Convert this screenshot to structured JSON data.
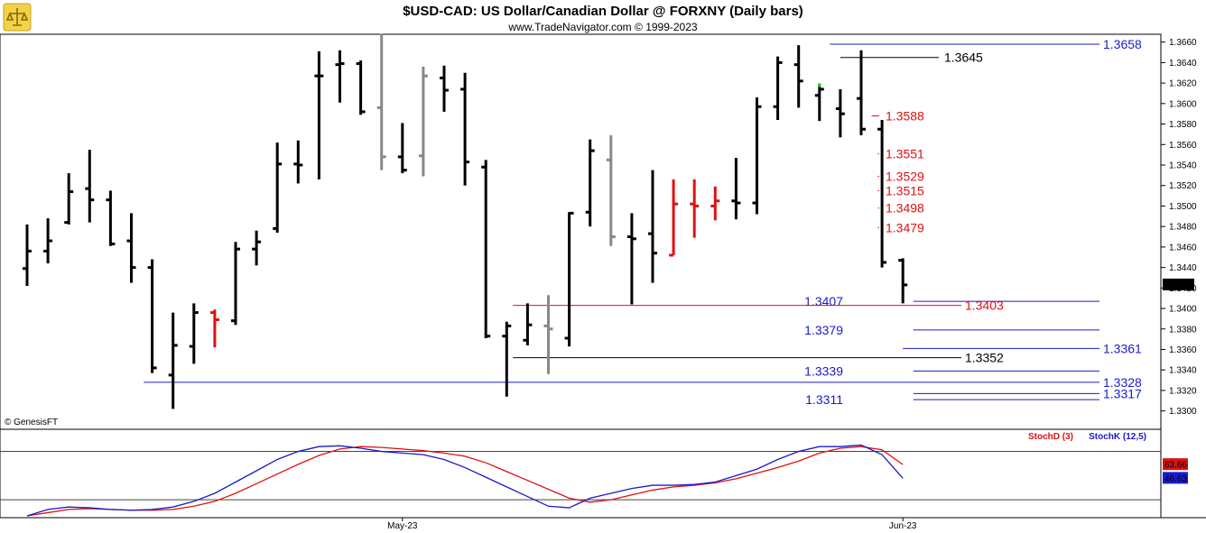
{
  "header": {
    "title": "$USD-CAD:  US Dollar/Canadian Dollar @ FORXNY  (Daily bars)",
    "subtitle": "www.TradeNavigator.com © 1999-2023",
    "watermark": "© GenesisFT"
  },
  "chart_data": [
    {
      "type": "ohlc",
      "name": "price",
      "ylim": [
        1.329,
        1.3665
      ],
      "y_ticks": [
        1.33,
        1.332,
        1.334,
        1.336,
        1.338,
        1.34,
        1.342,
        1.344,
        1.346,
        1.348,
        1.35,
        1.352,
        1.354,
        1.356,
        1.358,
        1.36,
        1.362,
        1.364,
        1.366
      ],
      "y_tick_labels": [
        "1.3300",
        "1.3320",
        "1.3340",
        "1.3360",
        "1.3380",
        "1.3400",
        "1.3420",
        "1.3440",
        "1.3460",
        "1.3480",
        "1.3500",
        "1.3520",
        "1.3540",
        "1.3560",
        "1.3580",
        "1.3600",
        "1.3620",
        "1.3640",
        "1.3660"
      ],
      "x_labels": [
        "May-23",
        "Jun-23"
      ],
      "x_label_bar_index": [
        18,
        42
      ],
      "last_price": "1.3423",
      "last_price_value": 1.3423,
      "bars": [
        {
          "o": 1.3439,
          "h": 1.3482,
          "l": 1.3422,
          "c": 1.3456,
          "color": "#000000"
        },
        {
          "o": 1.3456,
          "h": 1.3488,
          "l": 1.3444,
          "c": 1.3466,
          "color": "#000000"
        },
        {
          "o": 1.3484,
          "h": 1.3532,
          "l": 1.3482,
          "c": 1.3514,
          "color": "#000000"
        },
        {
          "o": 1.3517,
          "h": 1.3555,
          "l": 1.3484,
          "c": 1.3506,
          "color": "#000000"
        },
        {
          "o": 1.3506,
          "h": 1.3515,
          "l": 1.3461,
          "c": 1.3463,
          "color": "#000000"
        },
        {
          "o": 1.3466,
          "h": 1.3493,
          "l": 1.3425,
          "c": 1.344,
          "color": "#000000"
        },
        {
          "o": 1.344,
          "h": 1.3448,
          "l": 1.3337,
          "c": 1.3342,
          "color": "#000000"
        },
        {
          "o": 1.3335,
          "h": 1.3396,
          "l": 1.3302,
          "c": 1.3364,
          "color": "#000000"
        },
        {
          "o": 1.3363,
          "h": 1.3405,
          "l": 1.3346,
          "c": 1.3396,
          "color": "#000000"
        },
        {
          "o": 1.3396,
          "h": 1.3399,
          "l": 1.3362,
          "c": 1.3389,
          "color": "#e01010"
        },
        {
          "o": 1.3388,
          "h": 1.3465,
          "l": 1.3384,
          "c": 1.3458,
          "color": "#000000"
        },
        {
          "o": 1.3458,
          "h": 1.3476,
          "l": 1.3442,
          "c": 1.3465,
          "color": "#000000"
        },
        {
          "o": 1.3478,
          "h": 1.3562,
          "l": 1.3474,
          "c": 1.3541,
          "color": "#000000"
        },
        {
          "o": 1.3541,
          "h": 1.3564,
          "l": 1.3522,
          "c": 1.354,
          "color": "#000000"
        },
        {
          "o": 1.3627,
          "h": 1.3651,
          "l": 1.3526,
          "c": 1.3627,
          "color": "#000000"
        },
        {
          "o": 1.3638,
          "h": 1.3652,
          "l": 1.3601,
          "c": 1.3639,
          "color": "#000000"
        },
        {
          "o": 1.3639,
          "h": 1.3642,
          "l": 1.3589,
          "c": 1.3592,
          "color": "#000000"
        },
        {
          "o": 1.3596,
          "h": 1.3668,
          "l": 1.3535,
          "c": 1.3548,
          "color": "#888888"
        },
        {
          "o": 1.3548,
          "h": 1.3581,
          "l": 1.3532,
          "c": 1.3535,
          "color": "#000000"
        },
        {
          "o": 1.3549,
          "h": 1.3636,
          "l": 1.3529,
          "c": 1.3627,
          "color": "#888888"
        },
        {
          "o": 1.3625,
          "h": 1.3637,
          "l": 1.3592,
          "c": 1.3613,
          "color": "#000000"
        },
        {
          "o": 1.3614,
          "h": 1.363,
          "l": 1.352,
          "c": 1.3543,
          "color": "#000000"
        },
        {
          "o": 1.3538,
          "h": 1.3545,
          "l": 1.3371,
          "c": 1.3373,
          "color": "#000000"
        },
        {
          "o": 1.3373,
          "h": 1.3387,
          "l": 1.3314,
          "c": 1.3383,
          "color": "#000000"
        },
        {
          "o": 1.3369,
          "h": 1.3405,
          "l": 1.3364,
          "c": 1.3384,
          "color": "#000000"
        },
        {
          "o": 1.3383,
          "h": 1.3413,
          "l": 1.3336,
          "c": 1.338,
          "color": "#888888"
        },
        {
          "o": 1.3371,
          "h": 1.3494,
          "l": 1.3363,
          "c": 1.3493,
          "color": "#000000"
        },
        {
          "o": 1.3494,
          "h": 1.3565,
          "l": 1.348,
          "c": 1.3554,
          "color": "#000000"
        },
        {
          "o": 1.3545,
          "h": 1.3569,
          "l": 1.3461,
          "c": 1.347,
          "color": "#888888"
        },
        {
          "o": 1.347,
          "h": 1.3493,
          "l": 1.3404,
          "c": 1.3468,
          "color": "#000000"
        },
        {
          "o": 1.3473,
          "h": 1.3535,
          "l": 1.3425,
          "c": 1.3454,
          "color": "#000000"
        },
        {
          "o": 1.3452,
          "h": 1.3526,
          "l": 1.3452,
          "c": 1.3502,
          "color": "#e01010"
        },
        {
          "o": 1.3502,
          "h": 1.3526,
          "l": 1.3469,
          "c": 1.35,
          "color": "#e01010"
        },
        {
          "o": 1.35,
          "h": 1.3519,
          "l": 1.3486,
          "c": 1.3505,
          "color": "#e01010"
        },
        {
          "o": 1.3505,
          "h": 1.3547,
          "l": 1.3487,
          "c": 1.3503,
          "color": "#000000"
        },
        {
          "o": 1.3503,
          "h": 1.3606,
          "l": 1.3492,
          "c": 1.3597,
          "color": "#000000"
        },
        {
          "o": 1.3597,
          "h": 1.3646,
          "l": 1.3584,
          "c": 1.364,
          "color": "#000000"
        },
        {
          "o": 1.3638,
          "h": 1.3657,
          "l": 1.3596,
          "c": 1.3622,
          "color": "#000000"
        },
        {
          "o": 1.3608,
          "h": 1.3619,
          "l": 1.3583,
          "c": 1.3614,
          "color": "#000000"
        },
        {
          "o": 1.3595,
          "h": 1.3614,
          "l": 1.3567,
          "c": 1.359,
          "color": "#000000"
        },
        {
          "o": 1.3605,
          "h": 1.3652,
          "l": 1.3569,
          "c": 1.3575,
          "color": "#000000"
        },
        {
          "o": 1.3575,
          "h": 1.3584,
          "l": 1.344,
          "c": 1.3445,
          "color": "#000000"
        },
        {
          "o": 1.3447,
          "h": 1.3449,
          "l": 1.3405,
          "c": 1.3423,
          "color": "#000000"
        }
      ],
      "levels": [
        {
          "value": 1.3658,
          "label": "1.3658",
          "color": "#1a1acc",
          "start_bar": 38.5,
          "label_side": "right"
        },
        {
          "value": 1.3645,
          "label": "1.3645",
          "color": "#000000",
          "start_bar": 39,
          "label_side": "mid"
        },
        {
          "value": 1.3588,
          "label": "1.3588",
          "color": "#e01010",
          "start_bar": 40.5,
          "label_side": "mid"
        },
        {
          "value": 1.3551,
          "label": "1.3551",
          "color": "#e01010",
          "start_bar": 40.8,
          "label_side": "mid"
        },
        {
          "value": 1.3529,
          "label": "1.3529",
          "color": "#e01010",
          "start_bar": 40.8,
          "label_side": "mid"
        },
        {
          "value": 1.3515,
          "label": "1.3515",
          "color": "#e01010",
          "start_bar": 40.8,
          "label_side": "mid"
        },
        {
          "value": 1.3498,
          "label": "1.3498",
          "color": "#e01010",
          "start_bar": 40.8,
          "label_side": "mid"
        },
        {
          "value": 1.3479,
          "label": "1.3479",
          "color": "#e01010",
          "start_bar": 40.8,
          "label_side": "mid"
        },
        {
          "value": 1.3407,
          "label": "1.3407",
          "color": "#1a1acc",
          "start_bar": 42.5,
          "label_side": "left"
        },
        {
          "value": 1.3403,
          "label": "1.3403",
          "color": "#e01010",
          "start_bar": 23.3,
          "label_side": "mid2"
        },
        {
          "value": 1.3379,
          "label": "1.3379",
          "color": "#1a1acc",
          "start_bar": 42.5,
          "label_side": "left"
        },
        {
          "value": 1.3361,
          "label": "1.3361",
          "color": "#1a1acc",
          "start_bar": 42,
          "label_side": "right"
        },
        {
          "value": 1.3352,
          "label": "1.3352",
          "color": "#000000",
          "start_bar": 23.3,
          "label_side": "mid2"
        },
        {
          "value": 1.3339,
          "label": "1.3339",
          "color": "#1a1acc",
          "start_bar": 42.5,
          "label_side": "left"
        },
        {
          "value": 1.3328,
          "label": "1.3328",
          "color": "#1a1acc",
          "start_bar": 5.6,
          "label_side": "right"
        },
        {
          "value": 1.3317,
          "label": "1.3317",
          "color": "#1a1acc",
          "start_bar": 42.5,
          "label_side": "right"
        },
        {
          "value": 1.3311,
          "label": "1.3311",
          "color": "#1a1acc",
          "start_bar": 42.5,
          "label_side": "left"
        }
      ],
      "marker": {
        "bar": 38,
        "value": 1.3618,
        "color": "#22cc22"
      }
    },
    {
      "type": "line",
      "name": "stochastic",
      "ylim": [
        0,
        100
      ],
      "reference_lines": [
        80,
        20
      ],
      "series": [
        {
          "name": "StochD (3)",
          "label": "StochD (3)",
          "color": "#e01010",
          "last_label": "63.66",
          "values": [
            0,
            4,
            8,
            9,
            8,
            7,
            7,
            8,
            12,
            18,
            28,
            40,
            52,
            64,
            75,
            83,
            86,
            85,
            83,
            81,
            78,
            74,
            66,
            55,
            44,
            33,
            22,
            17,
            20,
            26,
            32,
            36,
            38,
            41,
            46,
            53,
            60,
            68,
            78,
            84,
            86,
            82,
            63.66
          ]
        },
        {
          "name": "StochK (12,5)",
          "label": "StochK (12,5)",
          "color": "#1a1acc",
          "last_label": "46.63",
          "values": [
            0,
            8,
            11,
            10,
            8,
            7,
            8,
            11,
            18,
            28,
            42,
            56,
            70,
            80,
            86,
            87,
            84,
            80,
            78,
            76,
            70,
            60,
            48,
            36,
            24,
            12,
            10,
            22,
            28,
            34,
            38,
            38,
            39,
            42,
            50,
            58,
            70,
            80,
            86,
            86,
            88,
            76,
            46.63
          ]
        }
      ]
    }
  ]
}
